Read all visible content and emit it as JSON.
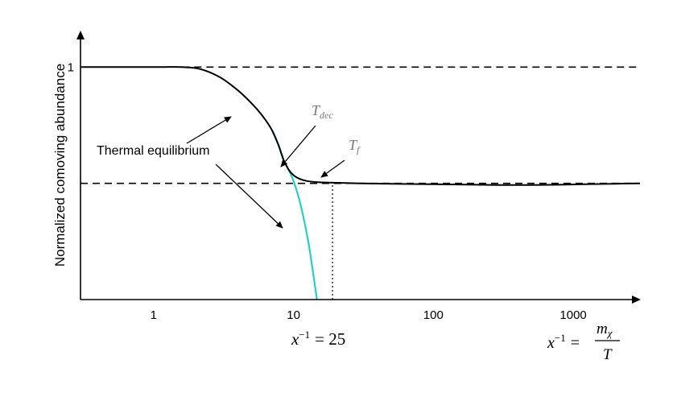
{
  "chart_data": {
    "type": "line",
    "title": "",
    "ylabel": "Normalized comoving abundance",
    "xscale": "log",
    "xlim": [
      0.3,
      3000
    ],
    "ylim": [
      0,
      1.15
    ],
    "x_ticks": [
      {
        "value": 1,
        "label": "1"
      },
      {
        "value": 10,
        "label": "10"
      },
      {
        "value": 100,
        "label": "100"
      },
      {
        "value": 1000,
        "label": "1000"
      }
    ],
    "y_ticks": [
      {
        "value": 1,
        "label": "1"
      }
    ],
    "grid": false,
    "legend": "none",
    "series": [
      {
        "color": "#000000",
        "style": "solid",
        "x": [
          0.3,
          1.0,
          1.6,
          2.2,
          3.0,
          4.0,
          5.0,
          6.0,
          7.0,
          7.8,
          8.5,
          9.2,
          10,
          11,
          12.5,
          15,
          18,
          22,
          30,
          50,
          100,
          200,
          300,
          500,
          800,
          1200,
          2000,
          3000
        ],
        "y": [
          1.0,
          1.0,
          1.0,
          0.99,
          0.955,
          0.9,
          0.845,
          0.79,
          0.73,
          0.665,
          0.6,
          0.56,
          0.535,
          0.52,
          0.51,
          0.505,
          0.503,
          0.502,
          0.5,
          0.498,
          0.496,
          0.494,
          0.493,
          0.493,
          0.494,
          0.496,
          0.498,
          0.5
        ]
      },
      {
        "color": "#22D3C5",
        "style": "solid",
        "x": [
          7.0,
          7.8,
          8.5,
          9.2,
          10,
          11,
          12,
          13,
          14,
          14.7
        ],
        "y": [
          0.73,
          0.665,
          0.6,
          0.56,
          0.51,
          0.43,
          0.33,
          0.22,
          0.09,
          0.0
        ]
      }
    ],
    "reference_lines": [
      {
        "orientation": "horizontal",
        "value": 1.0,
        "style": "dashed",
        "color": "#000000",
        "from_x": 1.6
      },
      {
        "orientation": "horizontal",
        "value": 0.5,
        "style": "dashed",
        "color": "#000000"
      },
      {
        "orientation": "vertical",
        "value": 19,
        "style": "dotted",
        "color": "#000000",
        "to_y": 0.5
      }
    ],
    "annotations": {
      "thermal_equilibrium": "Thermal equilibrium",
      "t_dec_base": "T",
      "t_dec_sub": "dec",
      "t_f_base": "T",
      "t_f_sub": "f",
      "x_value_lhs": "x",
      "x_value_exp": "−1",
      "x_value_rhs": "= 25",
      "axis_lhs": "x",
      "axis_exp": "−1",
      "axis_eq": "=",
      "axis_num_base": "m",
      "axis_num_sub": "χ",
      "axis_den": "T"
    }
  }
}
